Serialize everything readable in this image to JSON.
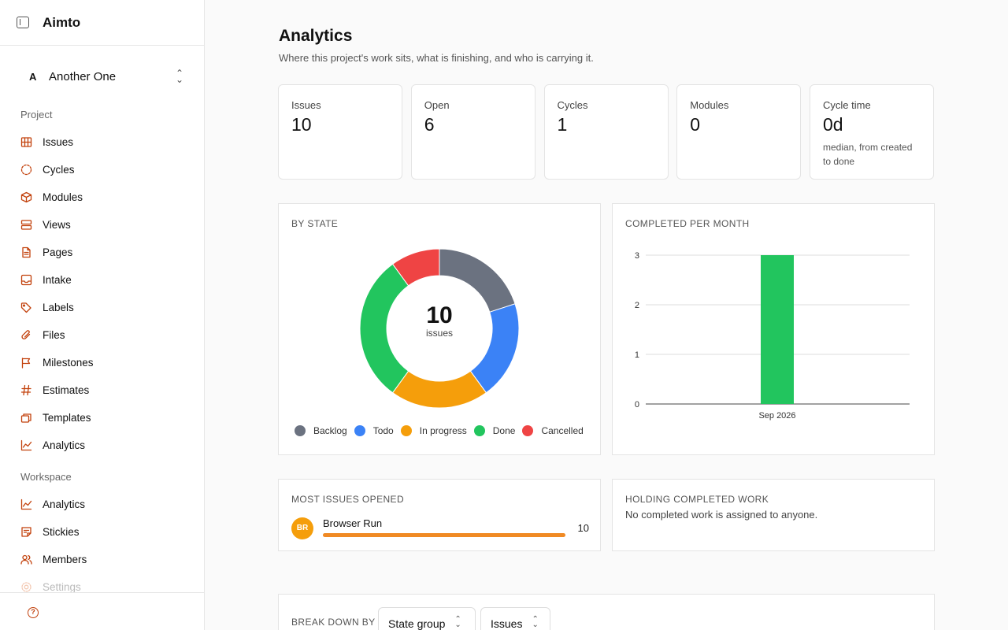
{
  "app": {
    "name": "Aimto"
  },
  "project_switcher": {
    "initial": "A",
    "name": "Another One"
  },
  "sidebar": {
    "project_section": "Project",
    "project_items": [
      {
        "label": "Issues",
        "icon": "grid-icon"
      },
      {
        "label": "Cycles",
        "icon": "cycle-icon"
      },
      {
        "label": "Modules",
        "icon": "cube-icon"
      },
      {
        "label": "Views",
        "icon": "layers-icon"
      },
      {
        "label": "Pages",
        "icon": "page-icon"
      },
      {
        "label": "Intake",
        "icon": "inbox-icon"
      },
      {
        "label": "Labels",
        "icon": "tag-icon"
      },
      {
        "label": "Files",
        "icon": "paperclip-icon"
      },
      {
        "label": "Milestones",
        "icon": "flag-icon"
      },
      {
        "label": "Estimates",
        "icon": "hash-icon"
      },
      {
        "label": "Templates",
        "icon": "templates-icon"
      },
      {
        "label": "Analytics",
        "icon": "chart-line-icon"
      }
    ],
    "workspace_section": "Workspace",
    "workspace_items": [
      {
        "label": "Analytics",
        "icon": "chart-line-icon"
      },
      {
        "label": "Stickies",
        "icon": "sticky-note-icon"
      },
      {
        "label": "Members",
        "icon": "users-icon"
      },
      {
        "label": "Settings",
        "icon": "gear-icon"
      }
    ],
    "accent": "#c2410c"
  },
  "page": {
    "title": "Analytics",
    "subtitle": "Where this project's work sits, what is finishing, and who is carrying it."
  },
  "stats": [
    {
      "label": "Issues",
      "value": "10",
      "note": ""
    },
    {
      "label": "Open",
      "value": "6",
      "note": ""
    },
    {
      "label": "Cycles",
      "value": "1",
      "note": ""
    },
    {
      "label": "Modules",
      "value": "0",
      "note": ""
    },
    {
      "label": "Cycle time",
      "value": "0d",
      "note": "median, from created to done"
    }
  ],
  "by_state": {
    "title": "BY STATE",
    "center_value": "10",
    "center_label": "issues"
  },
  "completed": {
    "title": "COMPLETED PER MONTH"
  },
  "most_opened": {
    "title": "MOST ISSUES OPENED",
    "rows": [
      {
        "initials": "BR",
        "name": "Browser Run",
        "count": "10",
        "fraction": 1.0
      }
    ]
  },
  "holding": {
    "title": "HOLDING COMPLETED WORK",
    "empty": "No completed work is assigned to anyone."
  },
  "breakdown": {
    "label": "BREAK DOWN BY",
    "group_select": "State group",
    "metric_select": "Issues"
  },
  "chart_data": [
    {
      "type": "pie",
      "categories": [
        "Backlog",
        "Todo",
        "In progress",
        "Done",
        "Cancelled"
      ],
      "values": [
        2,
        2,
        2,
        3,
        1
      ],
      "colors": [
        "#6b7280",
        "#3b82f6",
        "#f59e0b",
        "#22c55e",
        "#ef4444"
      ],
      "legend": "bottom"
    },
    {
      "type": "bar",
      "categories": [
        "Sep 2026"
      ],
      "values": [
        3
      ],
      "colors": [
        "#22c55e"
      ],
      "ylim": [
        0,
        3
      ],
      "yticks": [
        0,
        1,
        2,
        3
      ],
      "grid": true
    }
  ]
}
